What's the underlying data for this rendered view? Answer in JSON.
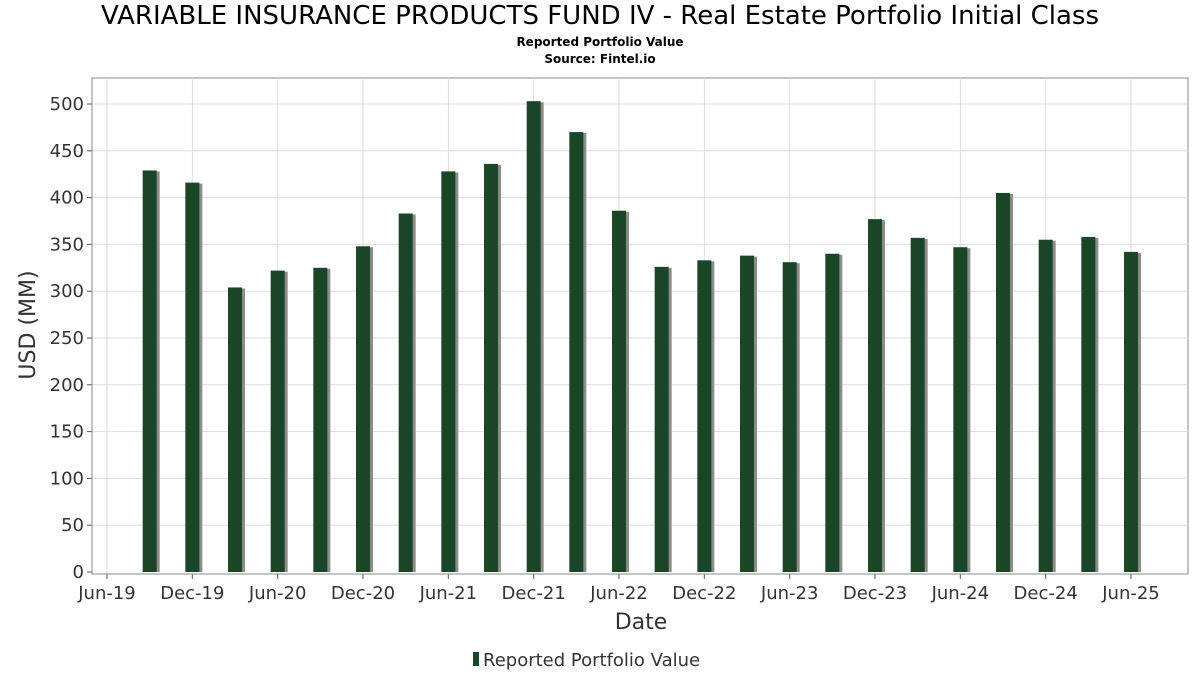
{
  "title": "VARIABLE INSURANCE PRODUCTS FUND IV - Real Estate Portfolio Initial Class",
  "subtitle": "Reported Portfolio Value",
  "source": "Source: Fintel.io",
  "colors": {
    "bar": "#1a4527",
    "bar_shadow": "#8c8c8c",
    "grid": "#dddddd",
    "axis": "#888888"
  },
  "chart_data": {
    "type": "bar",
    "xlabel": "Date",
    "ylabel": "USD (MM)",
    "ylim": [
      0,
      525
    ],
    "yticks": [
      0,
      50,
      100,
      150,
      200,
      250,
      300,
      350,
      400,
      450,
      500
    ],
    "xticks": [
      "Jun-19",
      "Dec-19",
      "Jun-20",
      "Dec-20",
      "Jun-21",
      "Dec-21",
      "Jun-22",
      "Dec-22",
      "Jun-23",
      "Dec-23",
      "Jun-24",
      "Dec-24",
      "Jun-25"
    ],
    "grid": true,
    "legend_position": "bottom",
    "series": [
      {
        "name": "Reported Portfolio Value",
        "x": [
          "2019-09",
          "2019-12",
          "2020-03",
          "2020-06",
          "2020-09",
          "2020-12",
          "2021-03",
          "2021-06",
          "2021-09",
          "2021-12",
          "2022-03",
          "2022-06",
          "2022-09",
          "2022-12",
          "2023-03",
          "2023-06",
          "2023-09",
          "2023-12",
          "2024-03",
          "2024-06",
          "2024-09",
          "2024-12",
          "2025-03",
          "2025-06"
        ],
        "values": [
          429,
          416,
          304,
          322,
          325,
          348,
          383,
          428,
          436,
          503,
          470,
          386,
          326,
          333,
          338,
          331,
          340,
          377,
          357,
          347,
          405,
          355,
          358,
          342
        ]
      }
    ]
  }
}
